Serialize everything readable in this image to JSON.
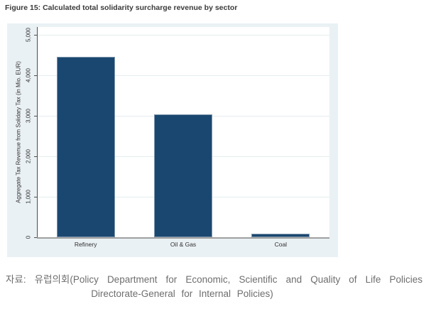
{
  "figure": {
    "title": "Figure 15: Calculated total solidarity surcharge revenue by sector",
    "source_line1": "자료: 유럽의회(Policy Department for Economic, Scientific and Quality of Life Policies",
    "source_line2": "Directorate-General for Internal Policies)"
  },
  "chart_data": {
    "type": "bar",
    "title": "",
    "categories": [
      "Refinery",
      "Oil & Gas",
      "Coal"
    ],
    "values": [
      4450,
      3030,
      80
    ],
    "xlabel": "",
    "ylabel": "Aggregate Tax Revenue from Solidary Tax (in Mio. EUR)",
    "ylim": [
      0,
      5190
    ],
    "yticks": [
      0,
      1000,
      2000,
      3000,
      4000,
      5000
    ],
    "ytick_labels": [
      "0",
      "1,000",
      "2,000",
      "3,000",
      "4,000",
      "5,000"
    ],
    "grid": true,
    "legend": false,
    "colors": {
      "bar_fill": "#1a476f",
      "bar_outline": "#7e97ad",
      "plot_bg": "#ffffff",
      "chart_bg": "#eaf1f4",
      "gridline": "#e4edf0",
      "x_axis_line": "#a0a0a0",
      "y_axis_line": "#4d4d4d",
      "tick_text": "#2f2f2f",
      "title_text": "#3a3a3a",
      "caption_text": "#6e6e6e"
    }
  }
}
